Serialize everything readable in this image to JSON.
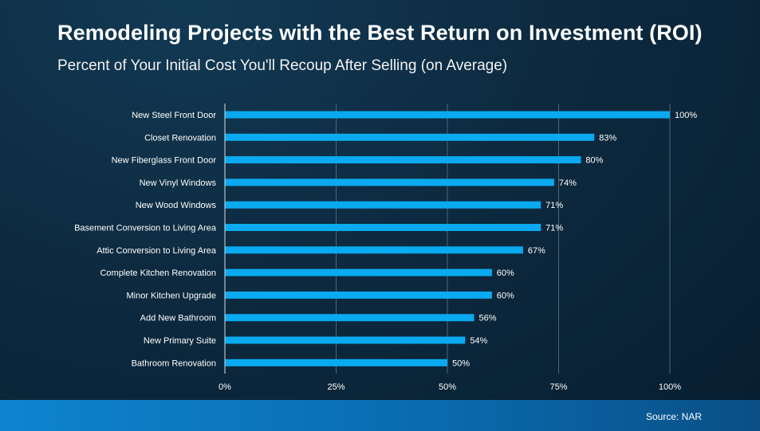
{
  "title": "Remodeling Projects with the Best Return on Investment (ROI)",
  "subtitle": "Percent of Your Initial Cost You'll Recoup After Selling (on Average)",
  "source": "Source: NAR",
  "colors": {
    "bar": "#0aaaf0",
    "grid": "#4e6577",
    "axis": "#d6dde3",
    "text": "#ffffff"
  },
  "chart_data": {
    "type": "bar",
    "orientation": "horizontal",
    "title": "Remodeling Projects with the Best Return on Investment (ROI)",
    "subtitle": "Percent of Your Initial Cost You'll Recoup After Selling (on Average)",
    "xlabel": "",
    "ylabel": "",
    "xlim": [
      0,
      100
    ],
    "grid": true,
    "categories": [
      "New Steel Front Door",
      "Closet Renovation",
      "New Fiberglass Front Door",
      "New Vinyl Windows",
      "New Wood Windows",
      "Basement Conversion to Living Area",
      "Attic Conversion to Living Area",
      "Complete Kitchen Renovation",
      "Minor Kitchen Upgrade",
      "Add New Bathroom",
      "New Primary Suite",
      "Bathroom Renovation"
    ],
    "values": [
      100,
      83,
      80,
      74,
      71,
      71,
      67,
      60,
      60,
      56,
      54,
      50
    ],
    "value_labels": [
      "100%",
      "83%",
      "80%",
      "74%",
      "71%",
      "71%",
      "67%",
      "60%",
      "60%",
      "56%",
      "54%",
      "50%"
    ],
    "x_ticks": [
      0,
      25,
      50,
      75,
      100
    ],
    "x_tick_labels": [
      "0%",
      "25%",
      "50%",
      "75%",
      "100%"
    ]
  }
}
